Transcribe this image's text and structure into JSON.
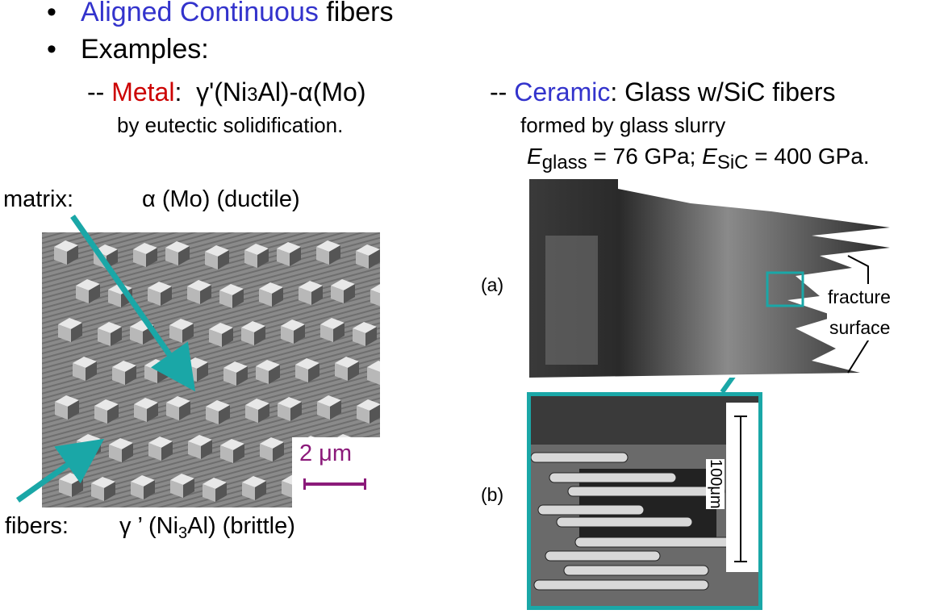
{
  "bullets": {
    "b1_highlight": "Aligned Continuous",
    "b1_rest": "fibers",
    "b2": "Examples:"
  },
  "metal": {
    "dash": "--",
    "label": "Metal",
    "formula_pre": "γ'(Ni",
    "formula_sub": "3",
    "formula_post": "Al)-α(Mo)",
    "note": "by eutectic solidification."
  },
  "ceramic": {
    "dash": "--",
    "label": "Ceramic",
    "rest": ": Glass w/SiC fibers",
    "note": "formed by glass slurry",
    "e1_sym": "E",
    "e1_sub": "glass",
    "e1_val": " = 76 GPa; ",
    "e2_sym": "E",
    "e2_sub": "SiC",
    "e2_val": " = 400 GPa."
  },
  "left_image": {
    "matrix_label": "matrix:",
    "matrix_desc": "α  (Mo) (ductile)",
    "fibers_label": "fibers:",
    "fibers_desc_pre": "γ ’ (Ni",
    "fibers_desc_sub": "3",
    "fibers_desc_post": "Al) (brittle)",
    "scale": "2 μm"
  },
  "right_image": {
    "label_a": "(a)",
    "label_b": "(b)",
    "fracture_1": "fracture",
    "fracture_2": "surface",
    "scale_b": "100μm"
  },
  "colors": {
    "accent_teal": "#1aa7a7",
    "highlight_blue": "#3333cc",
    "metal_red": "#cc0000",
    "scale_purple": "#8b1a7a"
  },
  "icons": [
    "bullet-dot-icon",
    "arrow-icon"
  ]
}
